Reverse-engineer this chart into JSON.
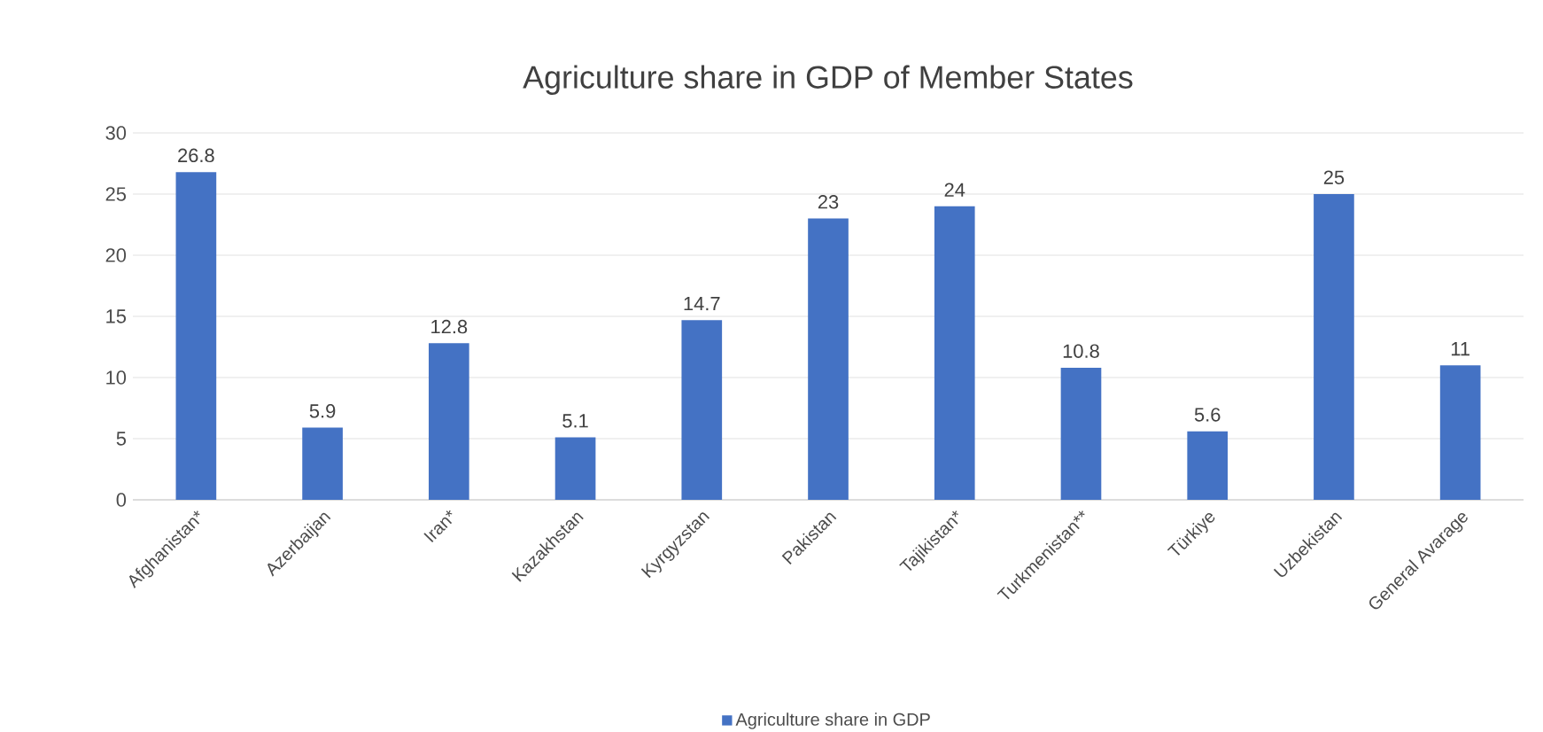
{
  "chart_data": {
    "type": "bar",
    "title": "Agriculture share in GDP of Member States",
    "categories": [
      "Afghanistan*",
      "Azerbaijan",
      "Iran*",
      "Kazakhstan",
      "Kyrgyzstan",
      "Pakistan",
      "Tajikistan*",
      "Turkmenistan**",
      "Türkiye",
      "Uzbekistan",
      "General Avarage"
    ],
    "series": [
      {
        "name": "Agriculture share in GDP",
        "color": "#4472c4",
        "values": [
          26.8,
          5.9,
          12.8,
          5.1,
          14.7,
          23,
          24,
          10.8,
          5.6,
          25,
          11
        ]
      }
    ],
    "ylim": [
      0,
      30
    ],
    "yticks": [
      0,
      5,
      10,
      15,
      20,
      25,
      30
    ],
    "grid": "y",
    "legend": "bottom",
    "data_labels": true
  }
}
